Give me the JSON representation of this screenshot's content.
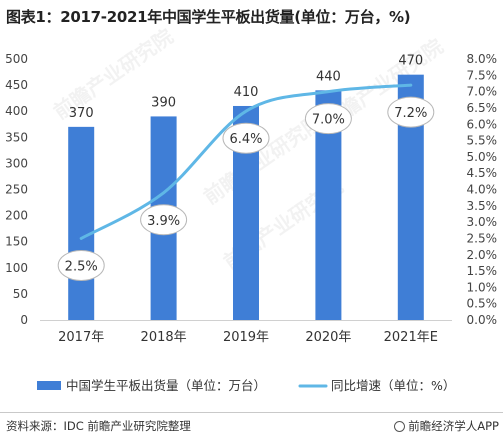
{
  "title": "图表1：2017-2021年中国学生平板出货量(单位：万台，%)",
  "source": "资料来源：IDC 前瞻产业研究院整理",
  "brand": "前瞻经济学人APP",
  "watermark": "前瞻产业研究院",
  "colors": {
    "bar": "#3f7ed6",
    "line": "#5fb7e6",
    "axis_text": "#444444",
    "grid": "#e3e3e3"
  },
  "chart_data": {
    "type": "bar",
    "categories": [
      "2017年",
      "2018年",
      "2019年",
      "2020年",
      "2021年E"
    ],
    "series": [
      {
        "name": "中国学生平板出货量（单位：万台）",
        "type": "bar",
        "axis": "left",
        "values": [
          370,
          390,
          410,
          440,
          470
        ],
        "labels": [
          "370",
          "390",
          "410",
          "440",
          "470"
        ]
      },
      {
        "name": "同比增速（单位：%）",
        "type": "line",
        "axis": "right",
        "values": [
          2.5,
          3.9,
          6.4,
          7.0,
          7.2
        ],
        "labels": [
          "2.5%",
          "3.9%",
          "6.4%",
          "7.0%",
          "7.2%"
        ]
      }
    ],
    "y_left": {
      "min": 0,
      "max": 500,
      "step": 50,
      "ticks": [
        "0",
        "50",
        "100",
        "150",
        "200",
        "250",
        "300",
        "350",
        "400",
        "450",
        "500"
      ]
    },
    "y_right": {
      "min": 0,
      "max": 8.0,
      "step": 0.5,
      "ticks": [
        "0.0%",
        "0.5%",
        "1.0%",
        "1.5%",
        "2.0%",
        "2.5%",
        "3.0%",
        "3.5%",
        "4.0%",
        "4.5%",
        "5.0%",
        "5.5%",
        "6.0%",
        "6.5%",
        "7.0%",
        "7.5%",
        "8.0%"
      ]
    },
    "legend_position": "bottom",
    "grid": false
  }
}
